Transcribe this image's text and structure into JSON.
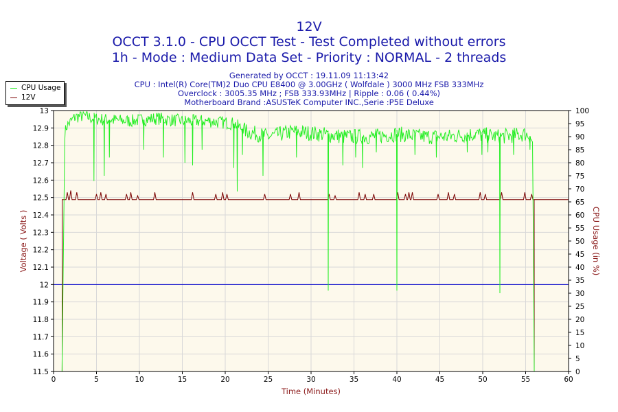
{
  "chart_data": {
    "type": "line",
    "title": "12V",
    "subtitle": [
      "OCCT 3.1.0 - CPU OCCT Test - Test Completed without errors",
      "1h - Mode : Medium Data Set - Priority : NORMAL - 2 threads"
    ],
    "info_lines": [
      "Generated by OCCT : 19.11.09 11:13:42",
      "CPU : Intel(R) Core(TM)2 Duo CPU E8400 @ 3.00GHz ( Wolfdale ) 3000 MHz FSB 333MHz",
      "Overclock : 3005.35 MHz ; FSB 333.93MHz | Ripple : 0.06 ( 0.44%)",
      "Motherboard Brand :ASUSTeK Computer INC.,Serie :P5E Deluxe"
    ],
    "xlabel": "Time (Minutes)",
    "ylabel_left": "Voltage ( Volts )",
    "ylabel_right": "CPU Usage (in %)",
    "xlim": [
      0,
      60
    ],
    "ylim_left": [
      11.5,
      13
    ],
    "ylim_right": [
      0,
      100
    ],
    "x_ticks": [
      "0",
      "5",
      "10",
      "15",
      "20",
      "25",
      "30",
      "35",
      "40",
      "45",
      "50",
      "55",
      "60"
    ],
    "y_left_ticks": [
      "11.5",
      "11.6",
      "11.7",
      "11.8",
      "11.9",
      "12",
      "12.1",
      "12.2",
      "12.3",
      "12.4",
      "12.5",
      "12.6",
      "12.7",
      "12.8",
      "12.9",
      "13"
    ],
    "y_right_ticks": [
      "0",
      "5",
      "10",
      "15",
      "20",
      "25",
      "30",
      "35",
      "40",
      "45",
      "50",
      "55",
      "60",
      "65",
      "70",
      "75",
      "80",
      "85",
      "90",
      "95",
      "100"
    ],
    "reference_line": 12,
    "legend": [
      "CPU Usage",
      "12V"
    ],
    "grid": true,
    "legend_position": "top-left, outside",
    "colors": {
      "cpu": "#22ee22",
      "voltage": "#7a0000",
      "reference": "#0000cc",
      "plot_bg": "#fdf9ec",
      "grid": "#d8d8d8",
      "text": "#1a1aaa",
      "axis_label": "#8b1a1a"
    },
    "series": [
      {
        "name": "CPU Usage",
        "axis": "right",
        "baseline": [
          [
            0.98,
            0
          ],
          [
            1.0,
            5
          ],
          [
            1.25,
            90
          ],
          [
            1.5,
            94
          ],
          [
            2.5,
            97.5
          ],
          [
            3.5,
            98
          ],
          [
            4.5,
            97
          ],
          [
            6,
            96.5
          ],
          [
            9,
            96
          ],
          [
            12,
            97
          ],
          [
            15,
            96
          ],
          [
            18,
            96
          ],
          [
            21,
            95
          ],
          [
            22.5,
            92
          ],
          [
            25,
            90
          ],
          [
            28,
            92
          ],
          [
            31,
            91
          ],
          [
            34,
            90
          ],
          [
            37,
            90
          ],
          [
            40,
            91
          ],
          [
            43,
            90
          ],
          [
            46,
            90
          ],
          [
            49,
            91
          ],
          [
            52,
            90
          ],
          [
            55,
            91
          ],
          [
            55.6,
            90
          ],
          [
            55.8,
            88
          ],
          [
            55.9,
            50
          ],
          [
            56.0,
            0
          ]
        ],
        "dips": [
          [
            4.7,
            73
          ],
          [
            5.9,
            75
          ],
          [
            6.5,
            82
          ],
          [
            10.5,
            85
          ],
          [
            12.8,
            82
          ],
          [
            15.3,
            80
          ],
          [
            16.2,
            79
          ],
          [
            17.3,
            85
          ],
          [
            21.0,
            78
          ],
          [
            21.4,
            69
          ],
          [
            22.0,
            83
          ],
          [
            24.4,
            75
          ],
          [
            28.3,
            82
          ],
          [
            32.0,
            31
          ],
          [
            33.7,
            79
          ],
          [
            35.2,
            82
          ],
          [
            36.0,
            78
          ],
          [
            37.6,
            84
          ],
          [
            40.0,
            31
          ],
          [
            42.1,
            83
          ],
          [
            44.6,
            82
          ],
          [
            48.2,
            84
          ],
          [
            49.9,
            83
          ],
          [
            50.6,
            84
          ],
          [
            52.0,
            30
          ],
          [
            53.6,
            83
          ],
          [
            55.5,
            85
          ]
        ]
      },
      {
        "name": "12V",
        "axis": "left",
        "baseline": 12.488,
        "spikes": [
          [
            1.6,
            12.53
          ],
          [
            2.0,
            12.54
          ],
          [
            2.7,
            12.53
          ],
          [
            5.0,
            12.52
          ],
          [
            5.5,
            12.53
          ],
          [
            6.1,
            12.52
          ],
          [
            8.5,
            12.52
          ],
          [
            9.0,
            12.53
          ],
          [
            9.8,
            12.51
          ],
          [
            11.8,
            12.53
          ],
          [
            16.2,
            12.53
          ],
          [
            18.9,
            12.52
          ],
          [
            19.7,
            12.53
          ],
          [
            20.2,
            12.52
          ],
          [
            24.6,
            12.52
          ],
          [
            27.6,
            12.52
          ],
          [
            28.6,
            12.53
          ],
          [
            32.1,
            12.52
          ],
          [
            32.8,
            12.51
          ],
          [
            35.6,
            12.53
          ],
          [
            36.3,
            12.52
          ],
          [
            37.3,
            12.52
          ],
          [
            40.1,
            12.53
          ],
          [
            41.0,
            12.52
          ],
          [
            41.4,
            12.53
          ],
          [
            41.8,
            12.53
          ],
          [
            44.8,
            12.52
          ],
          [
            46.0,
            12.53
          ],
          [
            46.7,
            12.52
          ],
          [
            49.7,
            12.53
          ],
          [
            50.3,
            12.52
          ],
          [
            52.2,
            12.53
          ],
          [
            54.9,
            12.53
          ],
          [
            55.7,
            12.52
          ]
        ],
        "x_start": 1.0,
        "x_end": 56.0,
        "start_values": [
          11.5,
          12.488
        ],
        "end_values": [
          12.488,
          11.5
        ]
      }
    ]
  }
}
